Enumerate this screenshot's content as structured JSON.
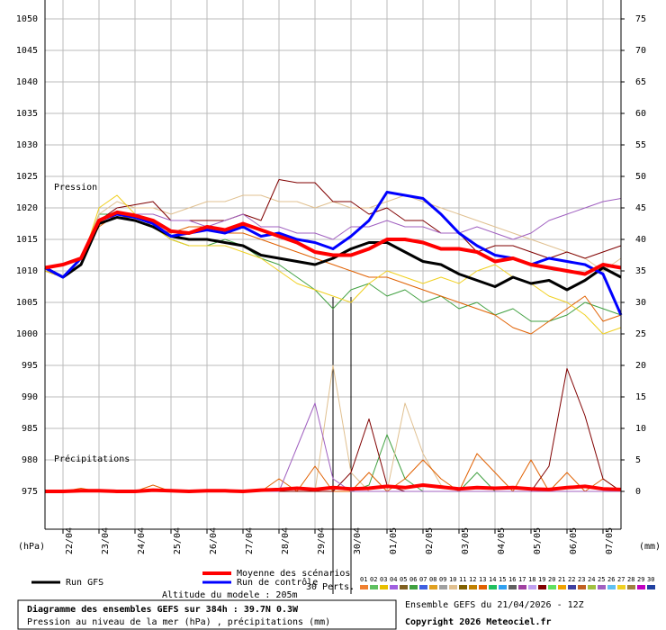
{
  "chart_data": {
    "type": "line",
    "annotations": {
      "pressure": "Pression",
      "precip": "Précipitations"
    },
    "y_unit": "(hPa)",
    "y2_unit": "(mm)",
    "legend_note": "30 Perts.",
    "altitude": "Altitude du modele : 205m",
    "title": "Diagramme des ensembles GEFS sur 384h : 39.7N 0.3W",
    "subtitle": "Pression au niveau de la mer (hPa) , précipitations (mm)",
    "run": "Ensemble GEFS du 21/04/2026 - 12Z",
    "copyright": "Copyright 2026 Meteociel.fr",
    "grid": true,
    "xlim": [
      0,
      384
    ],
    "xticks": [
      {
        "value": 12,
        "label": "22/04"
      },
      {
        "value": 36,
        "label": "23/04"
      },
      {
        "value": 60,
        "label": "24/04"
      },
      {
        "value": 84,
        "label": "25/04"
      },
      {
        "value": 108,
        "label": "26/04"
      },
      {
        "value": 132,
        "label": "27/04"
      },
      {
        "value": 156,
        "label": "28/04"
      },
      {
        "value": 180,
        "label": "29/04"
      },
      {
        "value": 204,
        "label": "30/04"
      },
      {
        "value": 228,
        "label": "01/05"
      },
      {
        "value": 252,
        "label": "02/05"
      },
      {
        "value": 276,
        "label": "03/05"
      },
      {
        "value": 300,
        "label": "04/05"
      },
      {
        "value": 324,
        "label": "05/05"
      },
      {
        "value": 348,
        "label": "06/05"
      },
      {
        "value": 372,
        "label": "07/05"
      }
    ],
    "ylim": [
      969,
      1053
    ],
    "yticks": [
      975,
      980,
      985,
      990,
      995,
      1000,
      1005,
      1010,
      1015,
      1020,
      1025,
      1030,
      1035,
      1040,
      1045,
      1050
    ],
    "y2lim": [
      -6,
      78
    ],
    "y2ticks": [
      0,
      5,
      10,
      15,
      20,
      25,
      30,
      35,
      40,
      45,
      50,
      55,
      60,
      65,
      70,
      75
    ],
    "x": [
      0,
      12,
      24,
      36,
      48,
      60,
      72,
      84,
      96,
      108,
      120,
      132,
      144,
      156,
      168,
      180,
      192,
      204,
      216,
      228,
      240,
      252,
      264,
      276,
      288,
      300,
      312,
      324,
      336,
      348,
      360,
      372,
      384
    ],
    "members": [
      {
        "name": "01",
        "color": "#f08030"
      },
      {
        "name": "02",
        "color": "#60c060"
      },
      {
        "name": "03",
        "color": "#e8c000"
      },
      {
        "name": "04",
        "color": "#a060e0"
      },
      {
        "name": "05",
        "color": "#806020"
      },
      {
        "name": "06",
        "color": "#40a040",
        "values": [
          1010,
          1009,
          1012,
          1019,
          1019,
          1018,
          1017,
          1015,
          1014,
          1014,
          1015,
          1014,
          1012,
          1011,
          1009,
          1007,
          1004,
          1007,
          1008,
          1006,
          1007,
          1005,
          1006,
          1004,
          1005,
          1003,
          1004,
          1002,
          1002,
          1003,
          1005,
          1004,
          1003
        ],
        "precip": [
          0,
          0,
          0,
          0,
          0,
          0,
          0,
          0,
          0,
          0,
          0,
          0,
          0,
          0,
          0,
          0,
          0,
          0,
          1,
          9,
          2,
          0,
          0,
          0,
          3,
          0,
          0,
          0,
          0,
          0,
          0,
          0,
          0
        ]
      },
      {
        "name": "07",
        "color": "#4060e0"
      },
      {
        "name": "08",
        "color": "#e0a020"
      },
      {
        "name": "09",
        "color": "#a0a0a0"
      },
      {
        "name": "10",
        "color": "#e0c090",
        "values": [
          1010,
          1009,
          1012,
          1019,
          1021,
          1020,
          1020,
          1019,
          1020,
          1021,
          1021,
          1022,
          1022,
          1021,
          1021,
          1020,
          1021,
          1020,
          1020,
          1021,
          1022,
          1021,
          1020,
          1019,
          1018,
          1017,
          1016,
          1015,
          1014,
          1013,
          1012,
          1010,
          1012
        ],
        "precip": [
          0,
          0,
          0,
          0,
          0,
          0,
          0,
          0,
          0,
          0,
          0,
          0,
          0,
          0,
          0,
          0,
          20,
          3,
          0,
          0,
          14,
          6,
          1,
          0,
          0,
          0,
          0,
          0,
          0,
          0,
          0,
          0,
          0
        ]
      },
      {
        "name": "11",
        "color": "#806000"
      },
      {
        "name": "12",
        "color": "#c08000"
      },
      {
        "name": "13",
        "color": "#e06000",
        "values": [
          1010,
          1009,
          1012,
          1017,
          1019,
          1018,
          1017,
          1016,
          1017,
          1017,
          1016,
          1016,
          1015,
          1014,
          1013,
          1012,
          1011,
          1010,
          1009,
          1009,
          1008,
          1007,
          1006,
          1005,
          1004,
          1003,
          1001,
          1000,
          1002,
          1004,
          1006,
          1002,
          1003
        ],
        "precip": [
          0,
          0,
          0.5,
          0,
          0,
          0,
          1,
          0,
          0,
          0,
          0,
          0,
          0,
          2,
          0,
          4,
          0,
          0,
          3,
          0,
          2,
          5,
          2,
          0,
          6,
          3,
          0,
          5,
          0,
          3,
          0,
          2,
          0
        ]
      },
      {
        "name": "14",
        "color": "#20c060"
      },
      {
        "name": "15",
        "color": "#30a0f0"
      },
      {
        "name": "16",
        "color": "#606060"
      },
      {
        "name": "17",
        "color": "#a040a0"
      },
      {
        "name": "18",
        "color": "#c0a0f0"
      },
      {
        "name": "19",
        "color": "#800000",
        "values": [
          1010,
          1009,
          1011,
          1018,
          1020,
          1020.5,
          1021,
          1018,
          1018,
          1018,
          1018,
          1019,
          1018,
          1024.5,
          1024,
          1024,
          1021,
          1021,
          1019,
          1020,
          1018,
          1018,
          1016,
          1016,
          1013,
          1014,
          1014,
          1013,
          1012,
          1013,
          1012,
          1013,
          1014
        ],
        "precip": [
          0,
          0,
          0,
          0,
          0,
          0,
          0,
          0,
          0,
          0,
          0,
          0,
          0,
          0,
          0,
          0,
          0,
          3,
          11.5,
          1,
          0,
          0,
          0,
          0,
          0,
          0,
          0,
          0,
          4,
          19.5,
          12,
          2,
          0
        ]
      },
      {
        "name": "20",
        "color": "#60e060"
      },
      {
        "name": "21",
        "color": "#f0a000"
      },
      {
        "name": "22",
        "color": "#4040a0"
      },
      {
        "name": "23",
        "color": "#c06020"
      },
      {
        "name": "24",
        "color": "#a0c040"
      },
      {
        "name": "25",
        "color": "#a060c0",
        "values": [
          1010,
          1009,
          1011,
          1018,
          1019,
          1019,
          1019,
          1018,
          1018,
          1017,
          1018,
          1019,
          1017,
          1017,
          1016,
          1016,
          1015,
          1017,
          1017,
          1018,
          1017,
          1017,
          1016,
          1016,
          1017,
          1016,
          1015,
          1016,
          1018,
          1019,
          1020,
          1021,
          1021.5
        ],
        "precip": [
          0,
          0,
          0,
          0,
          0,
          0,
          0,
          0,
          0,
          0,
          0,
          0,
          0,
          0,
          7,
          14,
          2,
          0,
          0,
          0,
          0,
          0,
          0,
          0,
          0,
          0,
          0,
          0,
          0,
          0,
          0,
          0,
          0
        ]
      },
      {
        "name": "26",
        "color": "#60c0f0"
      },
      {
        "name": "27",
        "color": "#f0d020",
        "values": [
          1010,
          1009,
          1011,
          1020,
          1022,
          1019,
          1017,
          1015,
          1014,
          1014,
          1014,
          1013,
          1012,
          1010,
          1008,
          1007,
          1006,
          1005,
          1008,
          1010,
          1009,
          1008,
          1009,
          1008,
          1010,
          1011,
          1009,
          1008,
          1006,
          1005,
          1003,
          1000,
          1001
        ]
      },
      {
        "name": "28",
        "color": "#a08040"
      },
      {
        "name": "29",
        "color": "#c000c0"
      },
      {
        "name": "30",
        "color": "#2040a0"
      }
    ],
    "series": [
      {
        "name": "Run GFS",
        "color": "#000000",
        "width": 3,
        "values": [
          1010.5,
          1009,
          1011,
          1017.5,
          1018.5,
          1018,
          1017,
          1015.5,
          1015,
          1015,
          1014.5,
          1014,
          1012.5,
          1012,
          1011.5,
          1011,
          1012,
          1013.5,
          1014.5,
          1014.5,
          1013,
          1011.5,
          1011,
          1009.5,
          1008.5,
          1007.5,
          1009,
          1008,
          1008.5,
          1007,
          1008.5,
          1010.5,
          1009
        ]
      },
      {
        "name": "Run de contrôle",
        "color": "#0000ff",
        "width": 3,
        "values": [
          1010.5,
          1009,
          1012,
          1018,
          1019,
          1018.5,
          1017.5,
          1015.5,
          1016,
          1016.5,
          1016,
          1017,
          1015.5,
          1016,
          1015,
          1014.5,
          1013.5,
          1015.5,
          1018,
          1022.5,
          1022,
          1021.5,
          1019,
          1016,
          1014,
          1012.5,
          1012,
          1011,
          1012,
          1011.5,
          1011,
          1009.5,
          1003
        ]
      },
      {
        "name": "Moyenne des scénarios",
        "color": "#ff0000",
        "width": 4,
        "values": [
          1010.5,
          1011,
          1012,
          1018,
          1019.3,
          1018.8,
          1018,
          1016.3,
          1016,
          1017,
          1016.5,
          1017.5,
          1016.5,
          1015.5,
          1014.5,
          1013,
          1012.5,
          1012.5,
          1013.5,
          1015,
          1015,
          1014.5,
          1013.5,
          1013.5,
          1013,
          1011.5,
          1012,
          1011,
          1010.5,
          1010,
          1009.5,
          1011,
          1010.5
        ]
      }
    ],
    "precip_mean": {
      "color": "#ff0000",
      "axis": "y2",
      "width": 4,
      "values": [
        0,
        0,
        0.1,
        0.1,
        0,
        0,
        0.2,
        0.1,
        0,
        0.1,
        0.1,
        0,
        0.2,
        0.3,
        0.5,
        0.3,
        0.6,
        0.4,
        0.5,
        0.8,
        0.6,
        1,
        0.7,
        0.4,
        0.6,
        0.5,
        0.6,
        0.4,
        0.3,
        0.6,
        0.8,
        0.4,
        0.3
      ]
    }
  }
}
